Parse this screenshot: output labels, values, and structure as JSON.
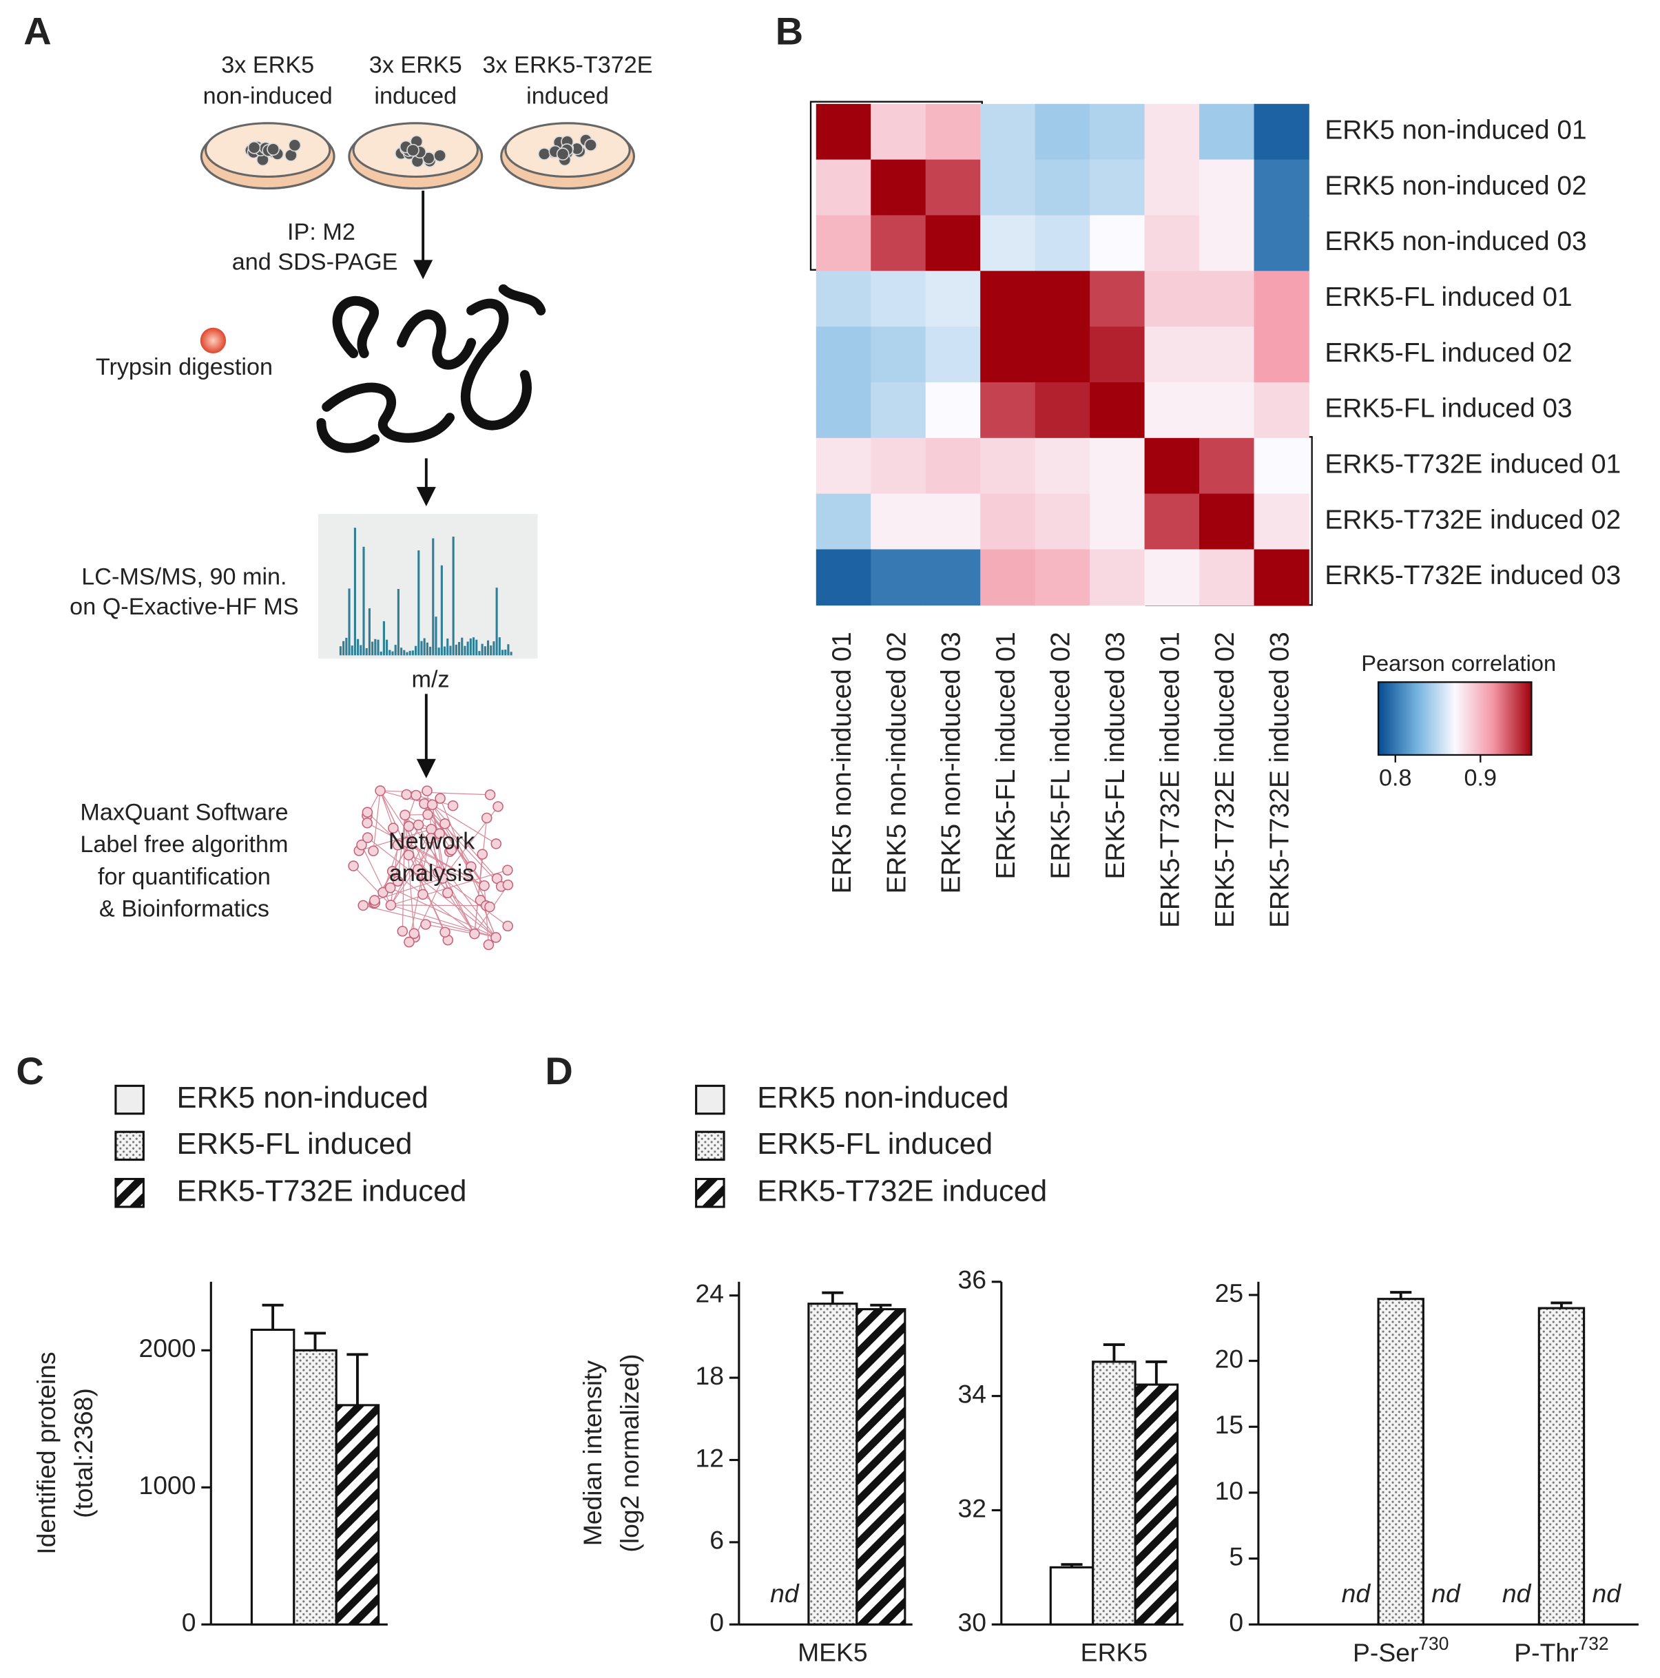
{
  "panel_labels": [
    "A",
    "B",
    "C",
    "D"
  ],
  "diagram": {
    "samples": [
      [
        "3x ERK5",
        "non-induced"
      ],
      [
        "3x ERK5",
        "induced"
      ],
      [
        "3x ERK5-T372E",
        "induced"
      ]
    ],
    "step1": [
      "IP: M2",
      "and SDS-PAGE"
    ],
    "step2": "Trypsin digestion",
    "step3": [
      "LC-MS/MS, 90 min.",
      "on Q-Exactive-HF MS"
    ],
    "spectrum_axis": "m/z",
    "step4": [
      "MaxQuant Software",
      "Label free algorithm",
      "for quantification",
      "& Bioinformatics"
    ],
    "network_label": [
      "Network",
      "analysis"
    ]
  },
  "chart_data": [
    {
      "type": "heatmap",
      "row_labels": [
        "ERK5 non-induced 01",
        "ERK5 non-induced 02",
        "ERK5 non-induced 03",
        "ERK5-FL induced 01",
        "ERK5-FL induced 02",
        "ERK5-FL induced 03",
        "ERK5-T732E induced 01",
        "ERK5-T732E induced 02",
        "ERK5-T732E induced 03"
      ],
      "column_labels": [
        "ERK5 non-induced 01",
        "ERK5 non-induced 02",
        "ERK5 non-induced 03",
        "ERK5-FL induced 01",
        "ERK5-FL induced 02",
        "ERK5-FL induced 03",
        "ERK5-T732E induced 01",
        "ERK5-T732E induced 02",
        "ERK5-T732E induced 03"
      ],
      "values": [
        [
          0.96,
          0.89,
          0.9,
          0.85,
          0.84,
          0.845,
          0.88,
          0.84,
          0.79
        ],
        [
          0.89,
          0.96,
          0.94,
          0.85,
          0.845,
          0.85,
          0.88,
          0.875,
          0.8
        ],
        [
          0.9,
          0.94,
          0.96,
          0.86,
          0.855,
          0.87,
          0.885,
          0.875,
          0.8
        ],
        [
          0.85,
          0.855,
          0.86,
          0.96,
          0.96,
          0.94,
          0.89,
          0.89,
          0.91
        ],
        [
          0.84,
          0.845,
          0.855,
          0.96,
          0.96,
          0.95,
          0.88,
          0.88,
          0.91
        ],
        [
          0.84,
          0.85,
          0.87,
          0.94,
          0.95,
          0.96,
          0.875,
          0.875,
          0.885
        ],
        [
          0.88,
          0.885,
          0.89,
          0.885,
          0.88,
          0.875,
          0.96,
          0.94,
          0.87
        ],
        [
          0.845,
          0.875,
          0.875,
          0.89,
          0.885,
          0.875,
          0.94,
          0.96,
          0.88
        ],
        [
          0.79,
          0.8,
          0.8,
          0.905,
          0.9,
          0.885,
          0.875,
          0.885,
          0.96
        ]
      ],
      "colorbar_title": "Pearson correlation",
      "zlim": [
        0.78,
        0.96
      ],
      "zticks": [
        0.8,
        0.9
      ]
    },
    {
      "type": "bar",
      "ylabel": [
        "Identified proteins",
        "(total:2368)"
      ],
      "categories": [
        null
      ],
      "series": [
        {
          "name": "ERK5 non-induced",
          "color": "#ffffff",
          "pattern": "none",
          "values": [
            2150
          ],
          "errors": [
            180
          ]
        },
        {
          "name": "ERK5-FL induced",
          "color": "#ffffff",
          "pattern": "dots",
          "values": [
            2000
          ],
          "errors": [
            125
          ]
        },
        {
          "name": "ERK5-T732E induced",
          "color": "#ffffff",
          "pattern": "hatch",
          "values": [
            1600
          ],
          "errors": [
            370
          ]
        }
      ],
      "ylim": [
        0,
        2500
      ],
      "yticks": [
        0,
        1000,
        2000
      ]
    },
    {
      "type": "bar",
      "ylabel": [
        "Median intensity",
        "(log2 normalized)"
      ],
      "categories": [
        "MEK5"
      ],
      "series": [
        {
          "name": "ERK5 non-induced",
          "color": "#ffffff",
          "pattern": "none",
          "values": [
            null
          ],
          "value_labels": [
            "nd"
          ],
          "errors": [
            null
          ]
        },
        {
          "name": "ERK5-FL induced",
          "color": "#ffffff",
          "pattern": "dots",
          "values": [
            23.4
          ],
          "errors": [
            0.8
          ]
        },
        {
          "name": "ERK5-T732E induced",
          "color": "#ffffff",
          "pattern": "hatch",
          "values": [
            23.0
          ],
          "errors": [
            0.3
          ]
        }
      ],
      "ylim": [
        0,
        25
      ],
      "yticks": [
        0,
        6,
        12,
        18,
        24
      ]
    },
    {
      "type": "bar",
      "categories": [
        "ERK5"
      ],
      "series": [
        {
          "color": "#ffffff",
          "pattern": "none",
          "values": [
            31.0
          ],
          "errors": [
            0.05
          ]
        },
        {
          "color": "#ffffff",
          "pattern": "dots",
          "values": [
            34.6
          ],
          "errors": [
            0.3
          ]
        },
        {
          "color": "#ffffff",
          "pattern": "hatch",
          "values": [
            34.2
          ],
          "errors": [
            0.4
          ]
        }
      ],
      "ylim": [
        30,
        36
      ],
      "yticks": [
        30,
        32,
        34,
        36
      ]
    },
    {
      "type": "bar",
      "categories": [
        {
          "base": "P-Ser",
          "superscript": "730"
        },
        {
          "base": "P-Thr",
          "superscript": "732"
        }
      ],
      "series": [
        {
          "color": "#ffffff",
          "pattern": "none",
          "values": [
            null,
            null
          ],
          "value_labels": [
            "nd",
            "nd"
          ],
          "errors": [
            null,
            null
          ]
        },
        {
          "color": "#ffffff",
          "pattern": "dots",
          "values": [
            24.7,
            24.0
          ],
          "errors": [
            0.5,
            0.4
          ]
        },
        {
          "color": "#ffffff",
          "pattern": "hatch",
          "values": [
            null,
            null
          ],
          "value_labels": [
            "nd",
            "nd"
          ],
          "errors": [
            null,
            null
          ]
        }
      ],
      "ylim": [
        0,
        26
      ],
      "yticks": [
        0,
        5,
        10,
        15,
        20,
        25
      ]
    }
  ]
}
